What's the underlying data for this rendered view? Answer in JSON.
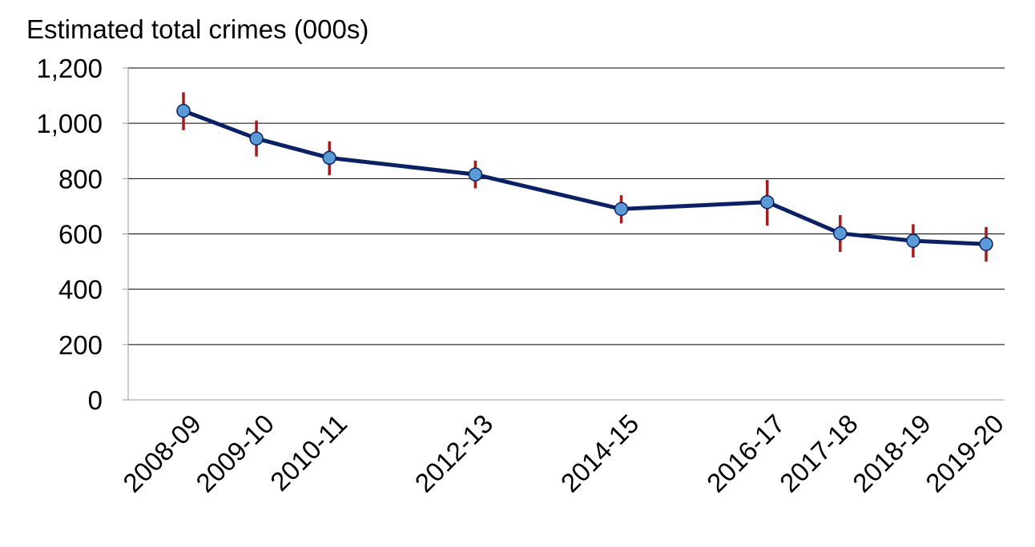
{
  "chart_data": {
    "type": "line",
    "ylabel": "Estimated total crimes (000s)",
    "xlabel": "",
    "ylim": [
      0,
      1200
    ],
    "yticks": [
      0,
      200,
      400,
      600,
      800,
      1000,
      1200
    ],
    "ytick_labels": [
      "0",
      "200",
      "400",
      "600",
      "800",
      "1,000",
      "1,200"
    ],
    "grid": true,
    "categories": [
      "2008-09",
      "2009-10",
      "2010-11",
      "2012-13",
      "2014-15",
      "2016-17",
      "2017-18",
      "2018-19",
      "2019-20"
    ],
    "year_start": [
      2008,
      2009,
      2010,
      2012,
      2014,
      2016,
      2017,
      2018,
      2019
    ],
    "series": [
      {
        "values": [
          1045,
          945,
          875,
          815,
          690,
          715,
          602,
          575,
          563
        ],
        "lower": [
          975,
          880,
          812,
          765,
          638,
          630,
          535,
          515,
          500
        ],
        "upper": [
          1112,
          1010,
          935,
          865,
          740,
          795,
          668,
          635,
          625
        ]
      }
    ],
    "colors": {
      "line": "#0b2164",
      "marker_fill": "#5b9bd5",
      "marker_stroke": "#0b2164",
      "error_bar": "#a21c1c",
      "grid": "#000000"
    }
  }
}
